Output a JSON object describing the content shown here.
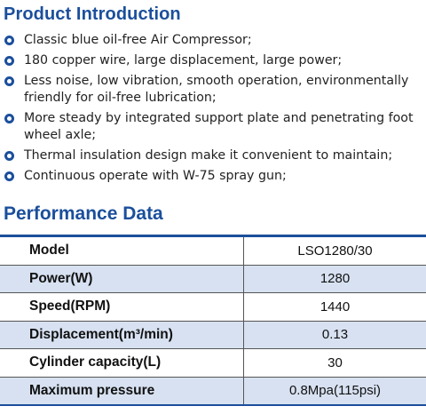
{
  "intro": {
    "title": "Product Introduction",
    "bullets": [
      "Classic blue oil-free Air Compressor;",
      "180 copper wire, large displacement, large power;",
      "Less noise, low vibration, smooth operation, environmentally friendly for oil-free lubrication;",
      "More steady by integrated support plate and penetrating foot wheel axle;",
      "Thermal insulation design make it convenient to maintain;",
      "Continuous operate with W-75 spray gun;"
    ]
  },
  "performance": {
    "title": "Performance Data",
    "rows": [
      {
        "label": "Model",
        "value": "LSO1280/30"
      },
      {
        "label": "Power(W)",
        "value": "1280"
      },
      {
        "label": "Speed(RPM)",
        "value": "1440"
      },
      {
        "label": "Displacement(m³/min)",
        "value": "0.13"
      },
      {
        "label": "Cylinder capacity(L)",
        "value": "30"
      },
      {
        "label": "Maximum pressure",
        "value": "0.8Mpa(115psi)"
      }
    ]
  },
  "colors": {
    "accent": "#1b4f9c",
    "row_alt": "#d7e1f1"
  },
  "icons": {
    "bullet": "circle-bullet-icon"
  }
}
